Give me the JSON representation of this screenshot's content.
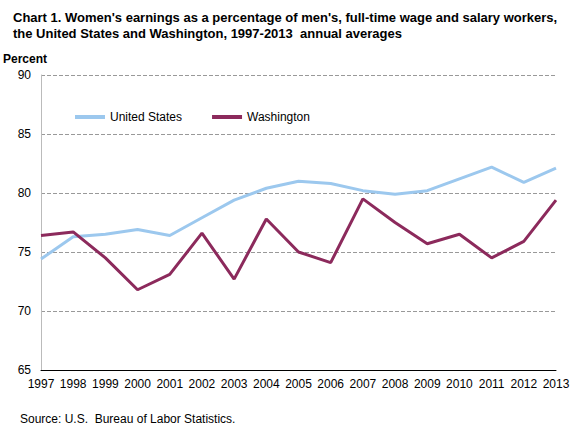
{
  "chart_data": {
    "type": "line",
    "title": "Chart 1. Women's earnings as a percentage of men's, full-time wage and salary workers, the United States and Washington, 1997-2013  annual averages",
    "y_label": "Percent",
    "source": "Source: U.S.  Bureau of Labor Statistics.",
    "categories": [
      "1997",
      "1998",
      "1999",
      "2000",
      "2001",
      "2002",
      "2003",
      "2004",
      "2005",
      "2006",
      "2007",
      "2008",
      "2009",
      "2010",
      "2011",
      "2012",
      "2013"
    ],
    "series": [
      {
        "name": "United States",
        "color": "#9cc8ee",
        "values": [
          74.4,
          76.3,
          76.5,
          76.9,
          76.4,
          77.9,
          79.4,
          80.4,
          81.0,
          80.8,
          80.2,
          79.9,
          80.2,
          81.2,
          82.2,
          80.9,
          82.1
        ]
      },
      {
        "name": "Washington",
        "color": "#8c2a5c",
        "values": [
          76.4,
          76.7,
          74.5,
          71.8,
          73.1,
          76.6,
          72.7,
          77.8,
          75.0,
          74.1,
          79.5,
          77.5,
          75.7,
          76.5,
          74.5,
          75.9,
          79.4
        ]
      }
    ],
    "ylim": [
      65,
      90
    ],
    "yticks": [
      65,
      70,
      75,
      80,
      85,
      90
    ],
    "grid": true,
    "legend": "upper left"
  }
}
